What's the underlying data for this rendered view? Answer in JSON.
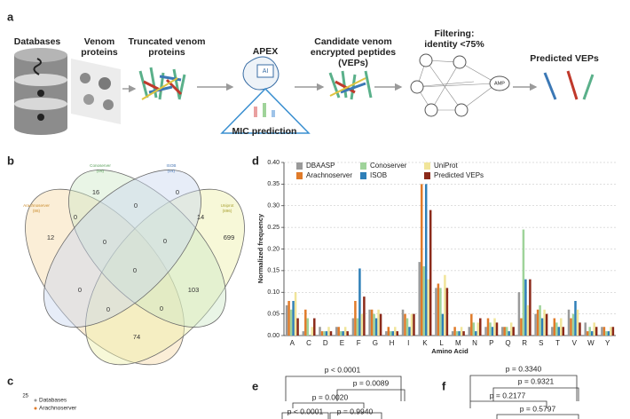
{
  "panel_a": {
    "letter": "a",
    "steps": [
      "Databases",
      "Venom proteins",
      "Truncated venom proteins",
      "APEX",
      "Candidate venom encrypted peptides (VEPs)",
      "Filtering: identity <75%",
      "Predicted VEPs"
    ],
    "apex_icon": "AI",
    "mic": "MIC prediction",
    "node": "AMP"
  },
  "panel_b": {
    "letter": "b",
    "sets": [
      {
        "name": "Arachnoserver",
        "count": "(86)"
      },
      {
        "name": "Conoserver",
        "count": "(16)"
      },
      {
        "name": "ISOB",
        "count": "(14)"
      },
      {
        "name": "Uniprot",
        "count": "(896)"
      }
    ],
    "regions": [
      16,
      0,
      12,
      0,
      0,
      14,
      699,
      0,
      0,
      0,
      0,
      103,
      0,
      0,
      74
    ]
  },
  "chart_data": {
    "type": "bar",
    "letter": "d",
    "ylabel": "Normalized frequency",
    "xlabel": "Amino Acid",
    "categories": [
      "A",
      "C",
      "D",
      "E",
      "F",
      "G",
      "H",
      "I",
      "K",
      "L",
      "M",
      "N",
      "P",
      "Q",
      "R",
      "S",
      "T",
      "V",
      "W",
      "Y"
    ],
    "series": [
      {
        "name": "DBAASP",
        "color": "#9a9a9a",
        "values": [
          0.07,
          0.01,
          0.02,
          0.02,
          0.04,
          0.06,
          0.01,
          0.06,
          0.17,
          0.11,
          0.01,
          0.02,
          0.02,
          0.02,
          0.1,
          0.05,
          0.02,
          0.06,
          0.03,
          0.02
        ]
      },
      {
        "name": "Arachnoserver",
        "color": "#e07b2a",
        "values": [
          0.08,
          0.06,
          0.01,
          0.02,
          0.08,
          0.06,
          0.02,
          0.05,
          0.35,
          0.12,
          0.02,
          0.05,
          0.04,
          0.02,
          0.04,
          0.06,
          0.04,
          0.04,
          0.01,
          0.02
        ]
      },
      {
        "name": "Conoserver",
        "color": "#9fd39a",
        "values": [
          0.06,
          0.04,
          0.01,
          0.01,
          0.04,
          0.05,
          0.01,
          0.04,
          0.16,
          0.11,
          0.01,
          0.03,
          0.03,
          0.02,
          0.245,
          0.07,
          0.03,
          0.05,
          0.02,
          0.01
        ]
      },
      {
        "name": "ISOB",
        "color": "#2e7fb8",
        "values": [
          0.08,
          0.0,
          0.01,
          0.01,
          0.155,
          0.04,
          0.01,
          0.02,
          0.35,
          0.05,
          0.01,
          0.01,
          0.02,
          0.01,
          0.13,
          0.04,
          0.02,
          0.08,
          0.01,
          0.01
        ]
      },
      {
        "name": "UniProt",
        "color": "#f1e59a",
        "values": [
          0.1,
          0.02,
          0.02,
          0.02,
          0.05,
          0.06,
          0.02,
          0.05,
          0.13,
          0.14,
          0.02,
          0.03,
          0.04,
          0.03,
          0.07,
          0.06,
          0.04,
          0.06,
          0.03,
          0.02
        ]
      },
      {
        "name": "Predicted VEPs",
        "color": "#8b2a1a",
        "values": [
          0.04,
          0.04,
          0.01,
          0.01,
          0.09,
          0.05,
          0.01,
          0.05,
          0.29,
          0.11,
          0.01,
          0.04,
          0.03,
          0.02,
          0.13,
          0.05,
          0.02,
          0.03,
          0.02,
          0.02
        ]
      }
    ],
    "ylim": [
      0,
      0.4
    ],
    "yticks": [
      {
        "value": 0,
        "label": "0.00"
      },
      {
        "value": 0.05,
        "label": "0.05"
      },
      {
        "value": 0.1,
        "label": "0.10"
      },
      {
        "value": 0.15,
        "label": "0.15"
      },
      {
        "value": 0.2,
        "label": "0.20"
      },
      {
        "value": 0.25,
        "label": "0.25"
      },
      {
        "value": 0.3,
        "label": "0.30"
      },
      {
        "value": 0.35,
        "label": "0.35"
      },
      {
        "value": 0.4,
        "label": "0.40"
      }
    ],
    "grid": true
  },
  "panel_c": {
    "letter": "c",
    "tick": "25",
    "legend": [
      "Databases",
      "Arachnoserver"
    ]
  },
  "panel_e": {
    "letter": "e",
    "pvalues": [
      "p < 0.0001",
      "p = 0.0089",
      "p = 0.0020",
      "p < 0.0001",
      "p = 0.9940"
    ]
  },
  "panel_f": {
    "letter": "f",
    "pvalues": [
      "p = 0.3340",
      "p = 0.9321",
      "p = 0.2177",
      "p = 0.5797"
    ]
  }
}
